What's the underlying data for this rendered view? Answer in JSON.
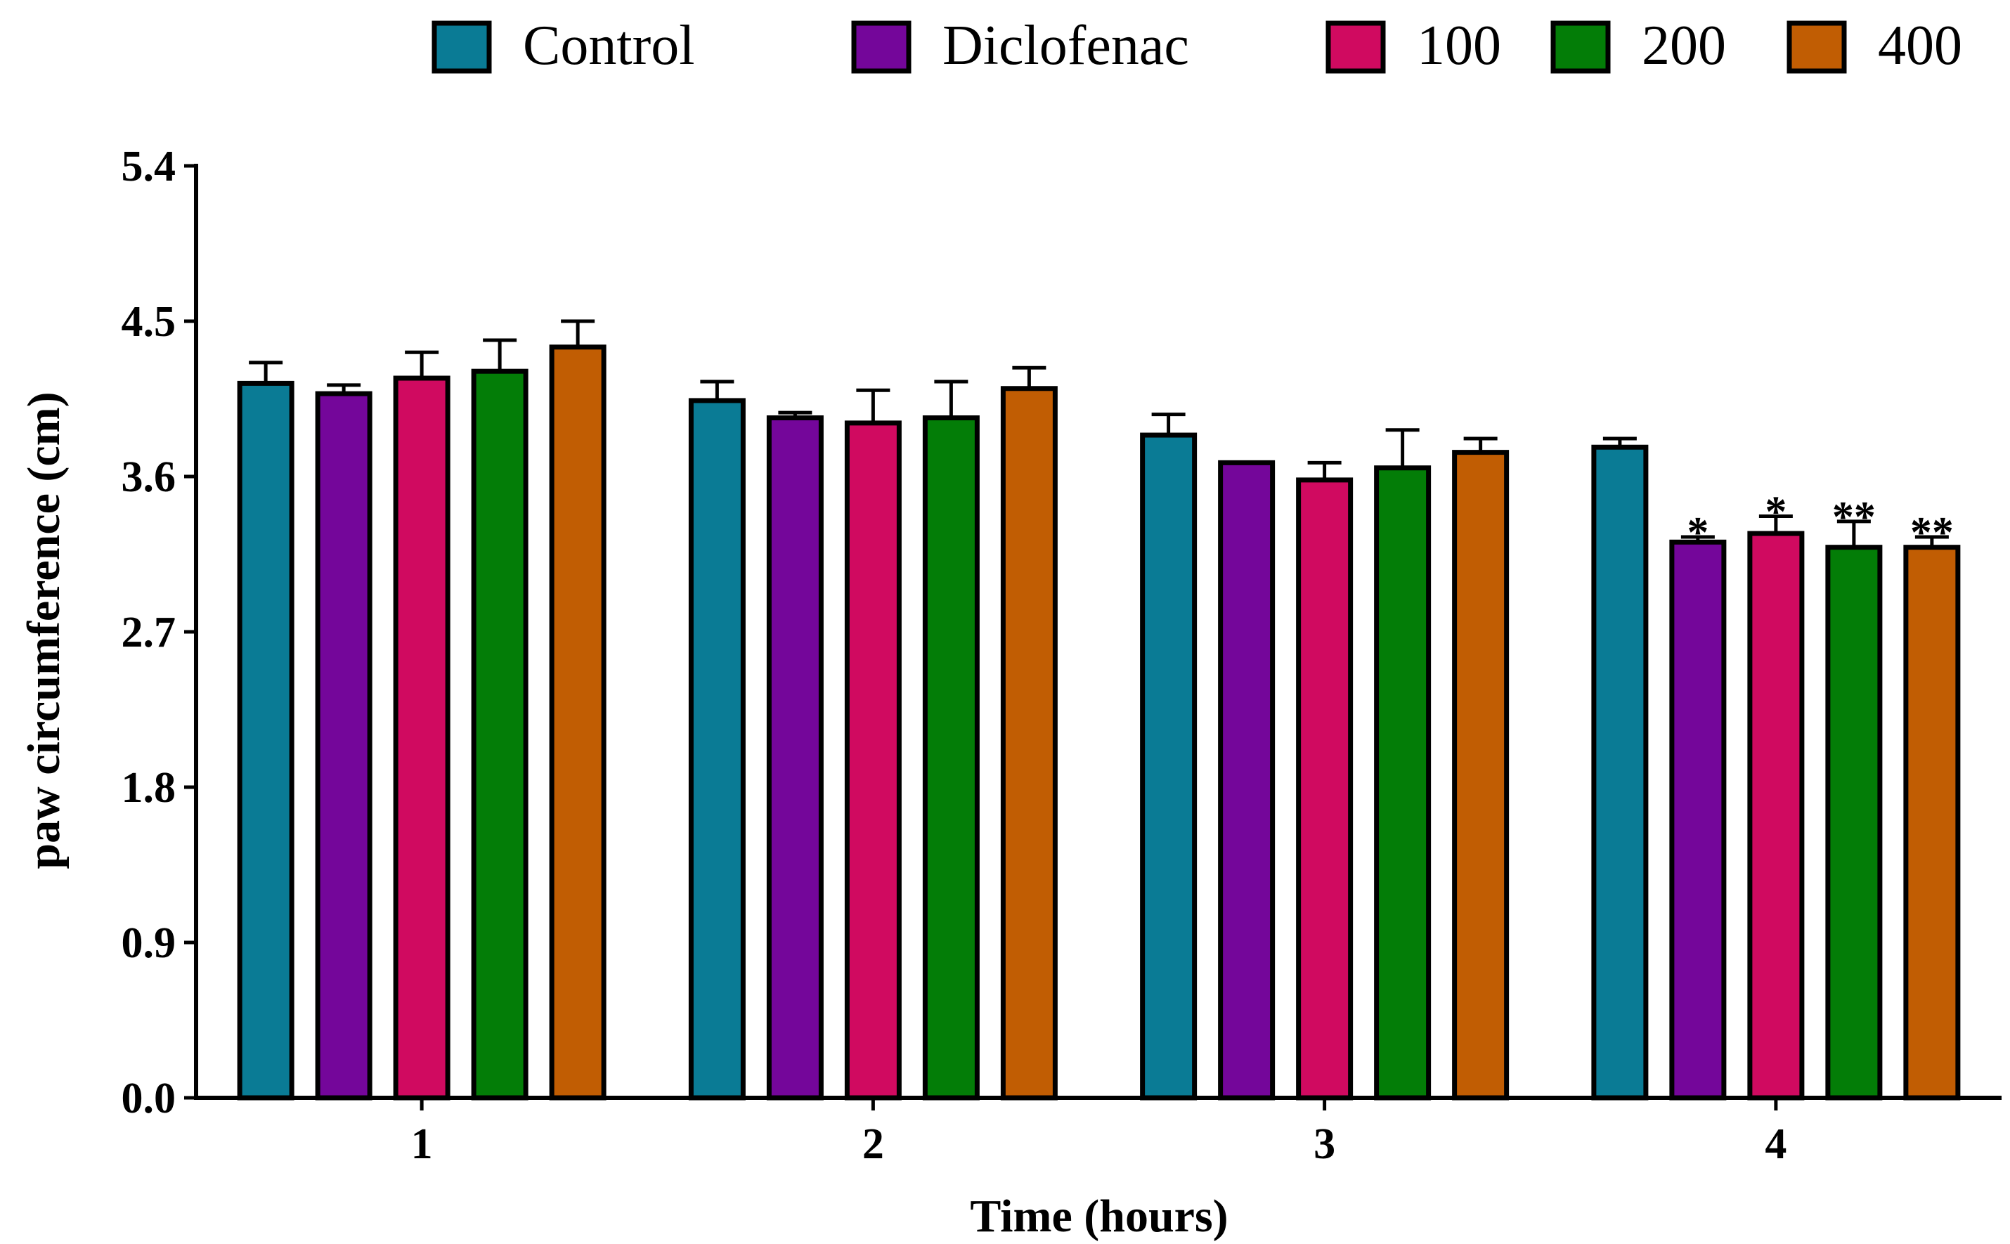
{
  "chart_data": {
    "type": "bar",
    "title": "",
    "xlabel": "Time (hours)",
    "ylabel": "paw circumference (cm)",
    "ylim": [
      0,
      5.4
    ],
    "yticks": [
      "0.0",
      "0.9",
      "1.8",
      "2.7",
      "3.6",
      "4.5",
      "5.4"
    ],
    "categories": [
      "1",
      "2",
      "3",
      "4"
    ],
    "legend_position": "top",
    "grid": false,
    "series": [
      {
        "name": "Control",
        "color": "#0a7b95",
        "values": [
          4.14,
          4.04,
          3.84,
          3.77
        ],
        "errors": [
          0.12,
          0.11,
          0.12,
          0.05
        ],
        "significance": [
          "",
          "",
          "",
          ""
        ]
      },
      {
        "name": "Diclofenac",
        "color": "#74069a",
        "values": [
          4.08,
          3.94,
          3.68,
          3.22
        ],
        "errors": [
          0.05,
          0.03,
          0.0,
          0.03
        ],
        "significance": [
          "",
          "",
          "",
          "*"
        ]
      },
      {
        "name": "100",
        "color": "#d00a60",
        "values": [
          4.17,
          3.91,
          3.58,
          3.27
        ],
        "errors": [
          0.15,
          0.19,
          0.1,
          0.1
        ],
        "significance": [
          "",
          "",
          "",
          "*"
        ]
      },
      {
        "name": "200",
        "color": "#037d07",
        "values": [
          4.21,
          3.94,
          3.65,
          3.19
        ],
        "errors": [
          0.18,
          0.21,
          0.22,
          0.15
        ],
        "significance": [
          "",
          "",
          "",
          "**"
        ]
      },
      {
        "name": "400",
        "color": "#c15d03",
        "values": [
          4.35,
          4.11,
          3.74,
          3.19
        ],
        "errors": [
          0.15,
          0.12,
          0.08,
          0.06
        ],
        "significance": [
          "",
          "",
          "",
          "**"
        ]
      }
    ]
  }
}
